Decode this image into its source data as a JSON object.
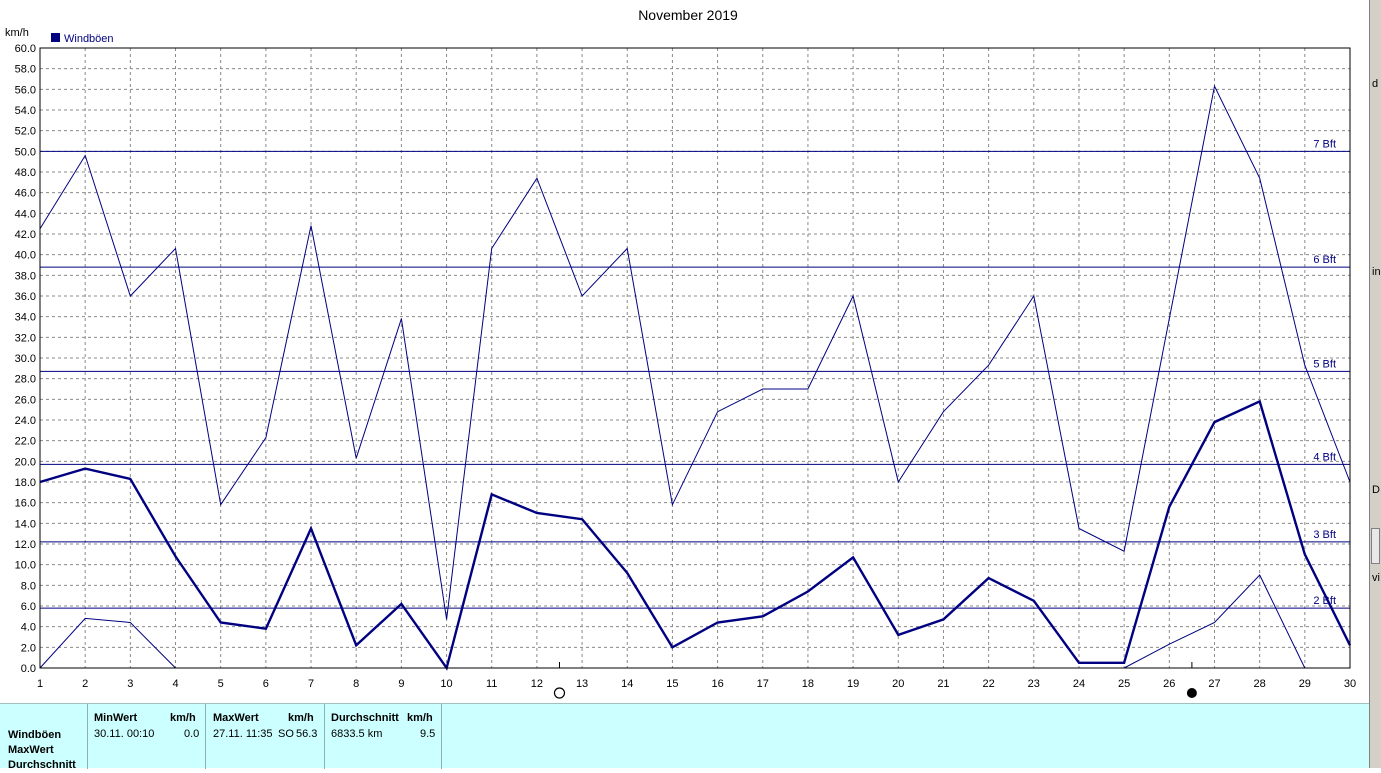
{
  "chart_data": {
    "type": "line",
    "title": "November 2019",
    "ylabel": "km/h",
    "ylim": [
      0,
      60
    ],
    "ytick_step": 2,
    "x": [
      1,
      2,
      3,
      4,
      5,
      6,
      7,
      8,
      9,
      10,
      11,
      12,
      13,
      14,
      15,
      16,
      17,
      18,
      19,
      20,
      21,
      22,
      23,
      24,
      25,
      26,
      27,
      28,
      29,
      30
    ],
    "legend": [
      "Windböen"
    ],
    "series": [
      {
        "name": "Windböen",
        "values": [
          18.0,
          19.3,
          18.3,
          10.8,
          4.4,
          3.8,
          13.5,
          2.2,
          6.2,
          0.0,
          16.8,
          15.0,
          14.4,
          9.2,
          2.0,
          4.4,
          5.0,
          7.4,
          10.7,
          3.2,
          4.7,
          8.7,
          6.5,
          0.5,
          0.5,
          15.6,
          23.8,
          25.8,
          11.0,
          2.2
        ],
        "color": "#000080",
        "width": 2.4
      },
      {
        "values": [
          42.5,
          49.6,
          36.0,
          40.6,
          15.8,
          22.3,
          42.8,
          20.3,
          33.8,
          4.7,
          40.6,
          47.4,
          36.0,
          40.6,
          15.8,
          24.8,
          27.0,
          27.0,
          36.0,
          18.0,
          24.8,
          29.3,
          36.0,
          13.5,
          11.3,
          33.8,
          56.3,
          47.4,
          29.3,
          18.0
        ],
        "color": "#000080",
        "width": 1
      },
      {
        "values": [
          0.0,
          4.8,
          4.4,
          0.0,
          null,
          null,
          null,
          null,
          null,
          null,
          null,
          null,
          null,
          null,
          null,
          null,
          null,
          null,
          null,
          null,
          null,
          null,
          null,
          null,
          0.0,
          2.3,
          4.4,
          9.0,
          0.0,
          null
        ],
        "color": "#000080",
        "width": 1
      }
    ],
    "beaufort_lines": [
      {
        "label": "2 Bft",
        "value": 5.8
      },
      {
        "label": "3 Bft",
        "value": 12.2
      },
      {
        "label": "4 Bft",
        "value": 19.7
      },
      {
        "label": "5 Bft",
        "value": 28.7
      },
      {
        "label": "6 Bft",
        "value": 38.8
      },
      {
        "label": "7 Bft",
        "value": 50.0
      }
    ],
    "moon_phases": [
      {
        "day": 12.5,
        "phase": "full"
      },
      {
        "day": 26.5,
        "phase": "new"
      }
    ],
    "grid": true
  },
  "stats": {
    "row_labels": [
      "Windböen",
      "MaxWert",
      "Durchschnitt"
    ],
    "min": {
      "header": "MinWert",
      "unit": "km/h",
      "when": "30.11.  00:10",
      "value": "0.0"
    },
    "max": {
      "header": "MaxWert",
      "unit": "km/h",
      "when": "27.11.  11:35",
      "dir": "SO",
      "value": "56.3"
    },
    "avg": {
      "header": "Durchschnitt",
      "unit": "km/h",
      "distance": "6833.5 km",
      "value": "9.5"
    }
  },
  "right_strip_chars": [
    "d",
    "in",
    "D",
    "vi"
  ]
}
